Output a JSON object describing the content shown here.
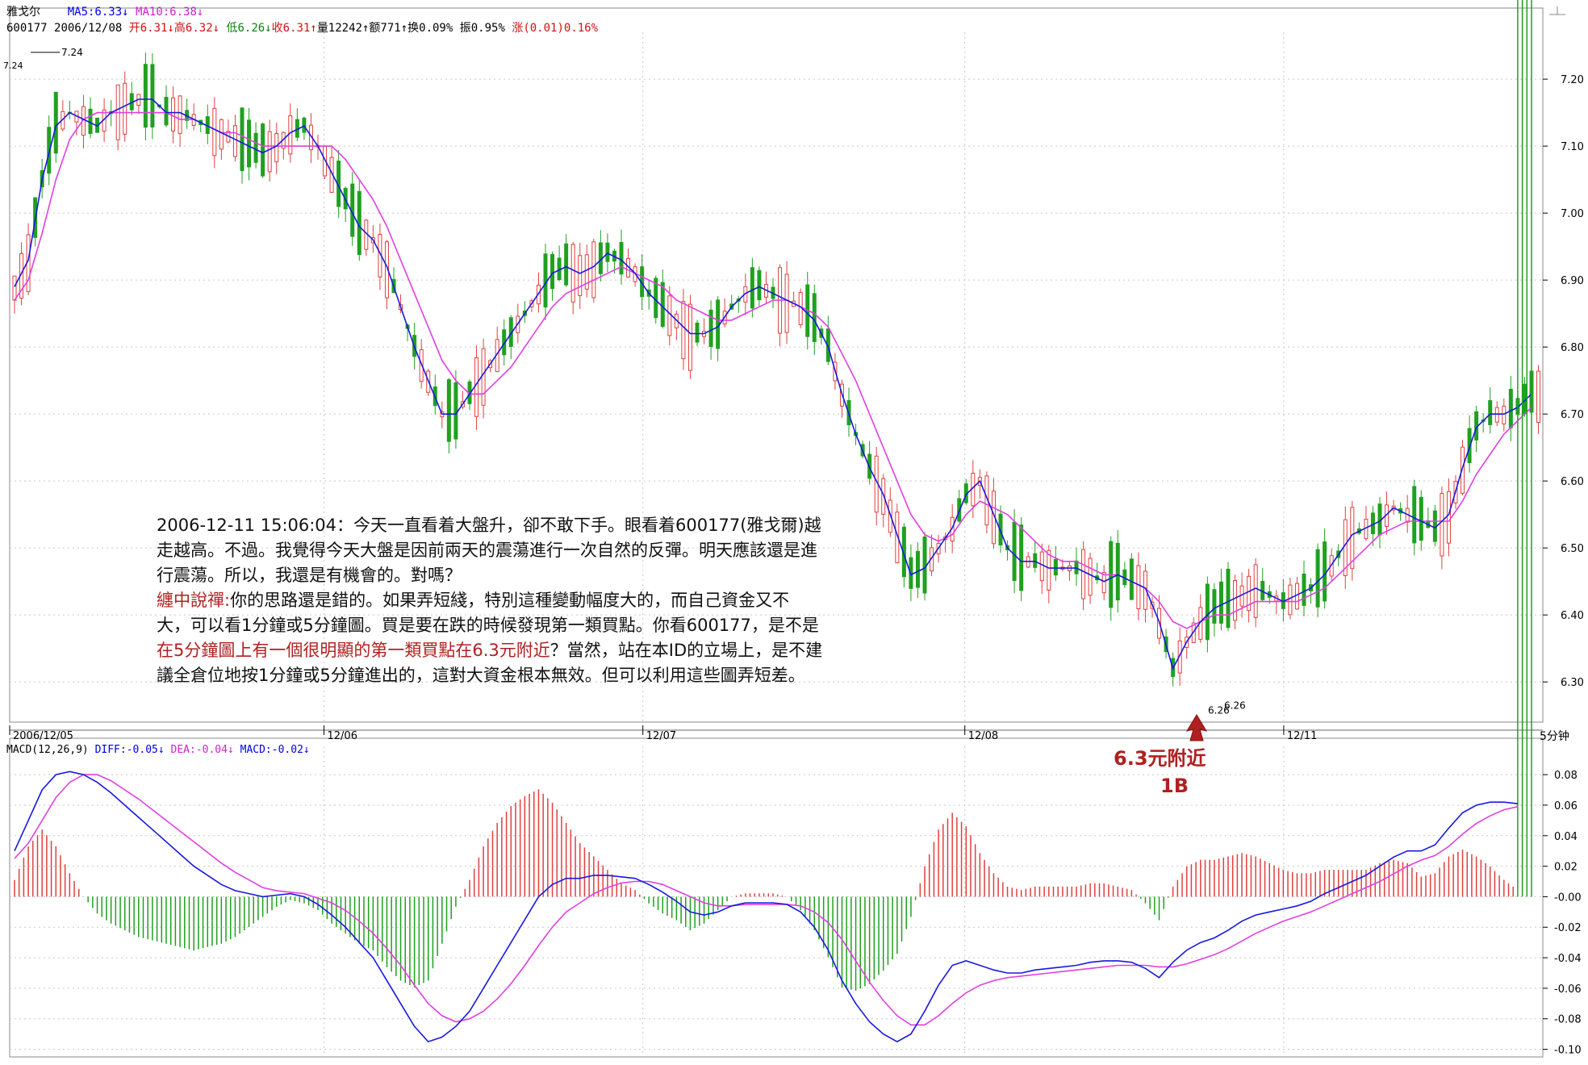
{
  "header": {
    "name": "雅戈尔",
    "ma5": "MA5:6.33",
    "ma10": "MA10:6.38",
    "code": "600177",
    "date": "2006/12/08",
    "open": "开6.31",
    "high": "高6.32",
    "low": "低6.26",
    "close": "收6.31",
    "volume": "量12242",
    "amount": "额771",
    "turnover": "换0.09%",
    "amplitude": "振0.95%",
    "change": "涨(0.01)0.16%"
  },
  "macd_header": {
    "name": "MACD(12,26,9)",
    "diff": "DIFF:-0.05",
    "dea": "DEA:-0.04",
    "macd": "MACD:-0.02"
  },
  "period": "5分钟",
  "annotation": {
    "line1": "2006-12-11 15:06:04：今天一直看着大盤升，卻不敢下手。眼看着600177(雅戈爾)越",
    "line2": "走越高。不過。我覺得今天大盤是因前兩天的震蕩進行一次自然的反彈。明天應該還是進",
    "line3": "行震蕩。所以，我還是有機會的。對嗎？",
    "zen_label": "纏中說禪:",
    "line4": "你的思路還是錯的。如果弄短綫，特別這種變動幅度大的，而自己資金又不",
    "line5": "大，可以看1分鐘或5分鐘圖。買是要在跌的時候發現第一類買點。你看600177，是不是",
    "line6_hl": "在5分鐘圖上有一個很明顯的第一類買點在6.3元附近",
    "line6_rest": "？當然，站在本ID的立場上，是不建",
    "line7": "議全倉位地按1分鐘或5分鐘進出的，這對大資金根本無效。但可以利用這些圖弄短差。"
  },
  "buy_marker": {
    "label": "6.3元附近",
    "code": "1B"
  },
  "colors": {
    "up": "#e04040",
    "down": "#20a020",
    "ma5": "#1818e0",
    "ma10": "#e040e0",
    "grid": "#c8c8c8",
    "annotation_red": "#b02020"
  },
  "chart_data": [
    {
      "type": "candlestick",
      "symbol": "600177",
      "interval": "5分钟",
      "y_ticks": [
        "7.20",
        "7.10",
        "7.00",
        "6.90",
        "6.80",
        "6.70",
        "6.60",
        "6.50",
        "6.40",
        "6.30"
      ],
      "ylim": [
        6.24,
        7.27
      ],
      "x_labels": [
        "2006/12/05",
        "12/06",
        "12/07",
        "12/08",
        "12/11"
      ],
      "high_label": "7.24",
      "low_labels": [
        "6.26",
        "6.26"
      ],
      "series": [
        {
          "name": "MA5",
          "values": [
            6.89,
            6.93,
            7.05,
            7.13,
            7.15,
            7.14,
            7.13,
            7.15,
            7.16,
            7.17,
            7.17,
            7.15,
            7.15,
            7.14,
            7.13,
            7.12,
            7.11,
            7.1,
            7.09,
            7.1,
            7.12,
            7.13,
            7.1,
            7.06,
            7.02,
            6.98,
            6.96,
            6.92,
            6.86,
            6.8,
            6.75,
            6.7,
            6.7,
            6.73,
            6.76,
            6.79,
            6.82,
            6.85,
            6.88,
            6.91,
            6.92,
            6.91,
            6.92,
            6.94,
            6.93,
            6.91,
            6.88,
            6.86,
            6.84,
            6.82,
            6.82,
            6.83,
            6.86,
            6.88,
            6.89,
            6.88,
            6.87,
            6.86,
            6.84,
            6.8,
            6.73,
            6.67,
            6.62,
            6.58,
            6.52,
            6.46,
            6.47,
            6.5,
            6.53,
            6.58,
            6.6,
            6.55,
            6.5,
            6.48,
            6.48,
            6.47,
            6.47,
            6.47,
            6.46,
            6.45,
            6.46,
            6.45,
            6.44,
            6.39,
            6.32,
            6.36,
            6.39,
            6.41,
            6.42,
            6.43,
            6.44,
            6.43,
            6.42,
            6.43,
            6.44,
            6.46,
            6.49,
            6.52,
            6.53,
            6.54,
            6.56,
            6.55,
            6.54,
            6.53,
            6.55,
            6.62,
            6.68,
            6.7,
            6.7,
            6.71,
            6.73
          ]
        },
        {
          "name": "MA10",
          "values": [
            6.87,
            6.9,
            6.97,
            7.05,
            7.11,
            7.14,
            7.15,
            7.15,
            7.15,
            7.15,
            7.15,
            7.15,
            7.14,
            7.14,
            7.13,
            7.12,
            7.12,
            7.11,
            7.1,
            7.1,
            7.1,
            7.1,
            7.1,
            7.1,
            7.08,
            7.05,
            7.02,
            6.98,
            6.93,
            6.88,
            6.83,
            6.78,
            6.75,
            6.73,
            6.73,
            6.75,
            6.77,
            6.8,
            6.83,
            6.86,
            6.88,
            6.89,
            6.9,
            6.91,
            6.92,
            6.91,
            6.9,
            6.89,
            6.87,
            6.86,
            6.85,
            6.84,
            6.84,
            6.85,
            6.86,
            6.87,
            6.87,
            6.86,
            6.85,
            6.83,
            6.79,
            6.75,
            6.7,
            6.65,
            6.6,
            6.55,
            6.52,
            6.51,
            6.52,
            6.55,
            6.57,
            6.56,
            6.55,
            6.53,
            6.51,
            6.49,
            6.48,
            6.48,
            6.47,
            6.46,
            6.46,
            6.45,
            6.44,
            6.42,
            6.39,
            6.38,
            6.39,
            6.4,
            6.4,
            6.41,
            6.42,
            6.42,
            6.42,
            6.42,
            6.43,
            6.44,
            6.46,
            6.48,
            6.5,
            6.52,
            6.53,
            6.54,
            6.54,
            6.54,
            6.54,
            6.57,
            6.61,
            6.64,
            6.67,
            6.69,
            6.71
          ]
        }
      ]
    },
    {
      "type": "macd",
      "y_ticks": [
        "0.08",
        "0.06",
        "0.04",
        "0.02",
        "-0.00",
        "-0.02",
        "-0.04",
        "-0.06",
        "-0.08",
        "-0.10"
      ],
      "ylim": [
        -0.105,
        0.088
      ],
      "series": [
        {
          "name": "DIFF",
          "values": [
            0.03,
            0.05,
            0.07,
            0.08,
            0.082,
            0.08,
            0.075,
            0.068,
            0.06,
            0.052,
            0.044,
            0.036,
            0.028,
            0.02,
            0.014,
            0.008,
            0.004,
            0.002,
            0.0,
            0.001,
            0.002,
            0.0,
            -0.005,
            -0.012,
            -0.02,
            -0.03,
            -0.04,
            -0.055,
            -0.07,
            -0.085,
            -0.095,
            -0.092,
            -0.085,
            -0.075,
            -0.06,
            -0.045,
            -0.03,
            -0.015,
            0.0,
            0.008,
            0.012,
            0.012,
            0.014,
            0.014,
            0.013,
            0.012,
            0.008,
            0.003,
            -0.003,
            -0.01,
            -0.012,
            -0.01,
            -0.006,
            -0.004,
            -0.004,
            -0.004,
            -0.005,
            -0.01,
            -0.02,
            -0.035,
            -0.055,
            -0.07,
            -0.082,
            -0.09,
            -0.095,
            -0.09,
            -0.075,
            -0.058,
            -0.045,
            -0.042,
            -0.045,
            -0.048,
            -0.05,
            -0.05,
            -0.048,
            -0.047,
            -0.046,
            -0.045,
            -0.043,
            -0.042,
            -0.042,
            -0.043,
            -0.047,
            -0.053,
            -0.043,
            -0.035,
            -0.03,
            -0.027,
            -0.022,
            -0.016,
            -0.012,
            -0.01,
            -0.008,
            -0.006,
            -0.003,
            0.002,
            0.006,
            0.01,
            0.014,
            0.02,
            0.026,
            0.03,
            0.03,
            0.034,
            0.045,
            0.055,
            0.06,
            0.062,
            0.062,
            0.061
          ]
        },
        {
          "name": "DEA",
          "values": [
            0.025,
            0.035,
            0.05,
            0.065,
            0.075,
            0.08,
            0.08,
            0.076,
            0.07,
            0.064,
            0.057,
            0.05,
            0.043,
            0.036,
            0.029,
            0.022,
            0.016,
            0.011,
            0.006,
            0.004,
            0.003,
            0.002,
            -0.001,
            -0.004,
            -0.009,
            -0.016,
            -0.024,
            -0.034,
            -0.045,
            -0.058,
            -0.07,
            -0.078,
            -0.082,
            -0.08,
            -0.075,
            -0.067,
            -0.057,
            -0.045,
            -0.032,
            -0.02,
            -0.01,
            -0.004,
            0.002,
            0.006,
            0.009,
            0.01,
            0.01,
            0.008,
            0.004,
            0.0,
            -0.004,
            -0.006,
            -0.006,
            -0.005,
            -0.005,
            -0.005,
            -0.005,
            -0.006,
            -0.01,
            -0.017,
            -0.028,
            -0.042,
            -0.056,
            -0.068,
            -0.078,
            -0.084,
            -0.084,
            -0.078,
            -0.07,
            -0.063,
            -0.058,
            -0.055,
            -0.053,
            -0.052,
            -0.051,
            -0.05,
            -0.049,
            -0.048,
            -0.047,
            -0.046,
            -0.045,
            -0.045,
            -0.045,
            -0.046,
            -0.046,
            -0.044,
            -0.041,
            -0.038,
            -0.034,
            -0.029,
            -0.024,
            -0.02,
            -0.016,
            -0.013,
            -0.01,
            -0.006,
            -0.002,
            0.002,
            0.006,
            0.01,
            0.015,
            0.02,
            0.024,
            0.027,
            0.033,
            0.041,
            0.048,
            0.053,
            0.057,
            0.059
          ]
        }
      ]
    }
  ]
}
